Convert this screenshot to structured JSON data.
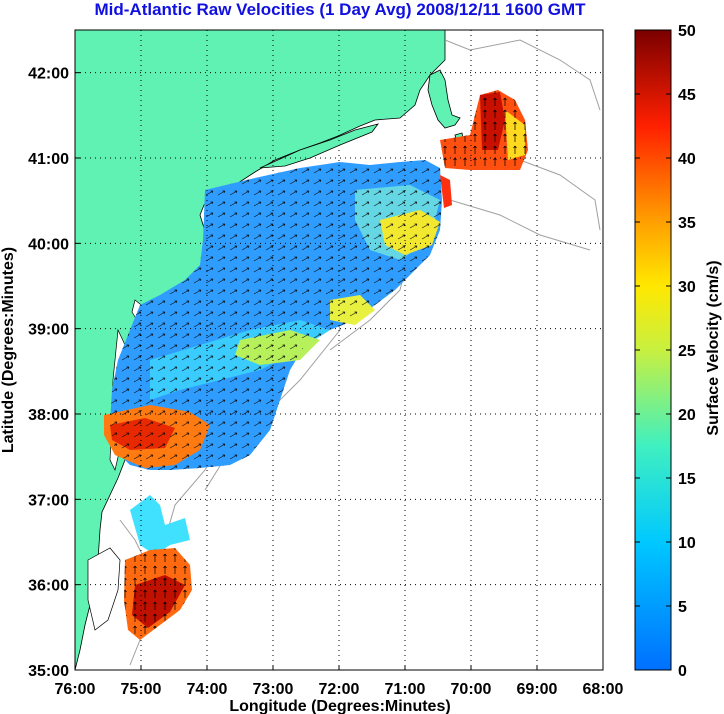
{
  "title": "Mid-Atlantic Raw Velocities (1 Day Avg) 2008/12/11 1600 GMT",
  "axes": {
    "xlabel": "Longitude (Degrees:Minutes)",
    "ylabel": "Latitude (Degrees:Minutes)",
    "x_ticks": [
      "76:00",
      "75:00",
      "74:00",
      "73:00",
      "72:00",
      "71:00",
      "70:00",
      "69:00",
      "68:00"
    ],
    "y_ticks": [
      "42:00",
      "41:00",
      "40:00",
      "39:00",
      "38:00",
      "37:00",
      "36:00",
      "35:00"
    ],
    "xlim": [
      -76,
      -68
    ],
    "ylim": [
      35,
      42.5
    ]
  },
  "colorbar": {
    "label": "Surface Velocity (cm/s)",
    "ticks": [
      "50",
      "45",
      "40",
      "35",
      "30",
      "25",
      "20",
      "15",
      "10",
      "5",
      "0"
    ],
    "range": [
      0,
      50
    ]
  },
  "colors": {
    "land": "#5ff2b3",
    "ocean": "#ffffff",
    "title": "#1010e0",
    "grid": "#000000",
    "bathymetry": "#a0a0a0"
  }
}
